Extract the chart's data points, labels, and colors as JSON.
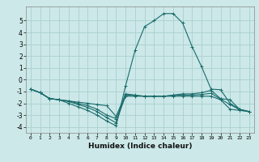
{
  "xlabel": "Humidex (Indice chaleur)",
  "background_color": "#cce8e8",
  "grid_color": "#aacfcf",
  "line_color": "#1a6b6b",
  "xlim": [
    -0.5,
    23.5
  ],
  "ylim": [
    -4.5,
    6.2
  ],
  "xticks": [
    0,
    1,
    2,
    3,
    4,
    5,
    6,
    7,
    8,
    9,
    10,
    11,
    12,
    13,
    14,
    15,
    16,
    17,
    18,
    19,
    20,
    21,
    22,
    23
  ],
  "yticks": [
    -4,
    -3,
    -2,
    -1,
    0,
    1,
    2,
    3,
    4,
    5
  ],
  "series": [
    {
      "x": [
        0,
        1,
        2,
        3,
        4,
        5,
        6,
        7,
        8,
        9,
        10,
        11,
        12,
        13,
        14,
        15,
        16,
        17,
        18,
        19,
        20,
        21,
        22,
        23
      ],
      "y": [
        -0.8,
        -1.1,
        -1.6,
        -1.7,
        -2.0,
        -2.3,
        -2.6,
        -3.0,
        -3.5,
        -3.9,
        -0.5,
        2.5,
        4.5,
        5.0,
        5.6,
        5.6,
        4.8,
        2.8,
        1.1,
        -0.8,
        -0.85,
        -2.0,
        -2.5,
        -2.7
      ]
    },
    {
      "x": [
        0,
        1,
        2,
        3,
        4,
        5,
        6,
        7,
        8,
        9,
        10,
        11,
        12,
        13,
        14,
        15,
        16,
        17,
        18,
        19,
        20,
        21,
        22,
        23
      ],
      "y": [
        -0.8,
        -1.1,
        -1.6,
        -1.7,
        -1.8,
        -1.9,
        -2.0,
        -2.1,
        -2.2,
        -3.1,
        -1.2,
        -1.3,
        -1.4,
        -1.4,
        -1.4,
        -1.3,
        -1.2,
        -1.2,
        -1.1,
        -0.9,
        -1.6,
        -1.7,
        -2.5,
        -2.7
      ]
    },
    {
      "x": [
        0,
        1,
        2,
        3,
        4,
        5,
        6,
        7,
        8,
        9,
        10,
        11,
        12,
        13,
        14,
        15,
        16,
        17,
        18,
        19,
        20,
        21,
        22,
        23
      ],
      "y": [
        -0.8,
        -1.1,
        -1.6,
        -1.7,
        -1.8,
        -2.0,
        -2.2,
        -2.5,
        -3.0,
        -3.3,
        -1.4,
        -1.4,
        -1.4,
        -1.4,
        -1.4,
        -1.4,
        -1.4,
        -1.4,
        -1.4,
        -1.4,
        -1.7,
        -2.5,
        -2.6,
        -2.7
      ]
    },
    {
      "x": [
        0,
        1,
        2,
        3,
        4,
        5,
        6,
        7,
        8,
        9,
        10,
        11,
        12,
        13,
        14,
        15,
        16,
        17,
        18,
        19,
        20,
        21,
        22,
        23
      ],
      "y": [
        -0.8,
        -1.1,
        -1.6,
        -1.7,
        -1.85,
        -2.1,
        -2.35,
        -2.7,
        -3.2,
        -3.65,
        -1.3,
        -1.35,
        -1.4,
        -1.4,
        -1.4,
        -1.35,
        -1.3,
        -1.3,
        -1.25,
        -1.15,
        -1.65,
        -2.1,
        -2.55,
        -2.7
      ]
    }
  ]
}
